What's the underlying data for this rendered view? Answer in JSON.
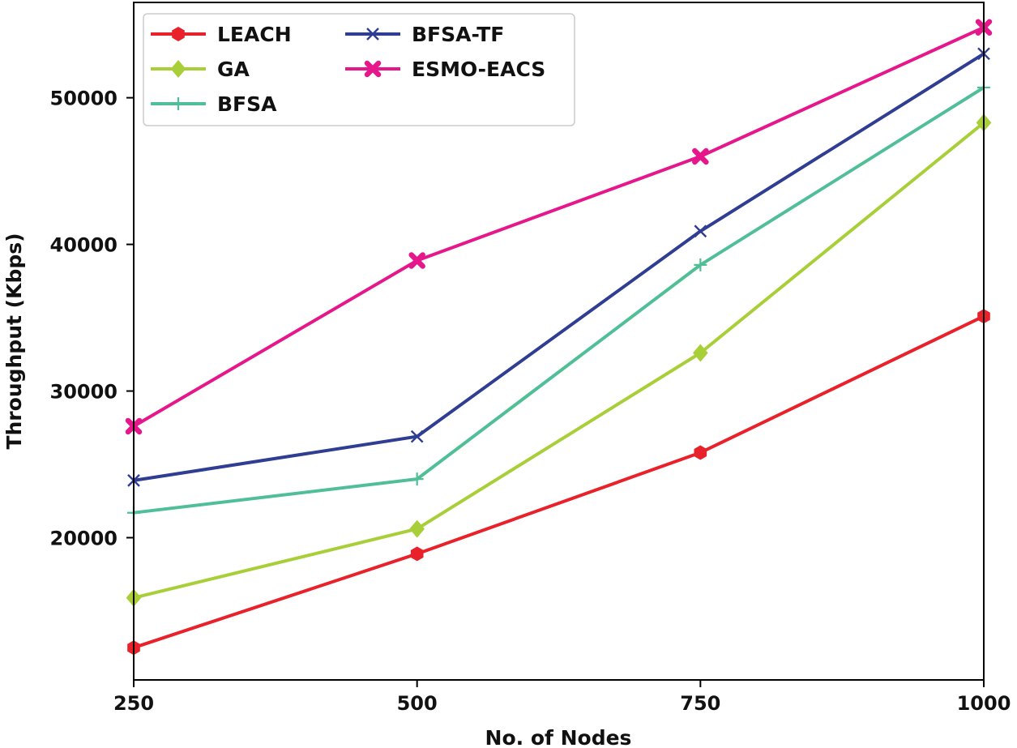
{
  "chart_data": {
    "type": "line",
    "title": "",
    "xlabel": "No. of Nodes",
    "ylabel": "Throughput (Kbps)",
    "x": [
      250,
      500,
      750,
      1000
    ],
    "x_tick_labels": [
      "250",
      "500",
      "750",
      "1000"
    ],
    "y_ticks": [
      20000,
      30000,
      40000,
      50000
    ],
    "y_tick_labels": [
      "20000",
      "30000",
      "40000",
      "50000"
    ],
    "xlim": [
      250,
      1000
    ],
    "ylim": [
      10300,
      56500
    ],
    "grid": false,
    "legend_position": "top-left",
    "series": [
      {
        "name": "LEACH",
        "color": "#e8212a",
        "marker": "hexagon",
        "values": [
          12500,
          18900,
          25800,
          35100
        ]
      },
      {
        "name": "GA",
        "color": "#a8cf38",
        "marker": "diamond",
        "values": [
          15900,
          20600,
          32600,
          48300
        ]
      },
      {
        "name": "BFSA",
        "color": "#50bf97",
        "marker": "plus",
        "values": [
          21700,
          24000,
          38600,
          50700
        ]
      },
      {
        "name": "BFSA-TF",
        "color": "#2f3d92",
        "marker": "x",
        "values": [
          23900,
          26900,
          40900,
          53000
        ]
      },
      {
        "name": "ESMO-EACS",
        "color": "#e5178b",
        "marker": "x-filled",
        "values": [
          27600,
          38900,
          46000,
          54800
        ]
      }
    ]
  }
}
